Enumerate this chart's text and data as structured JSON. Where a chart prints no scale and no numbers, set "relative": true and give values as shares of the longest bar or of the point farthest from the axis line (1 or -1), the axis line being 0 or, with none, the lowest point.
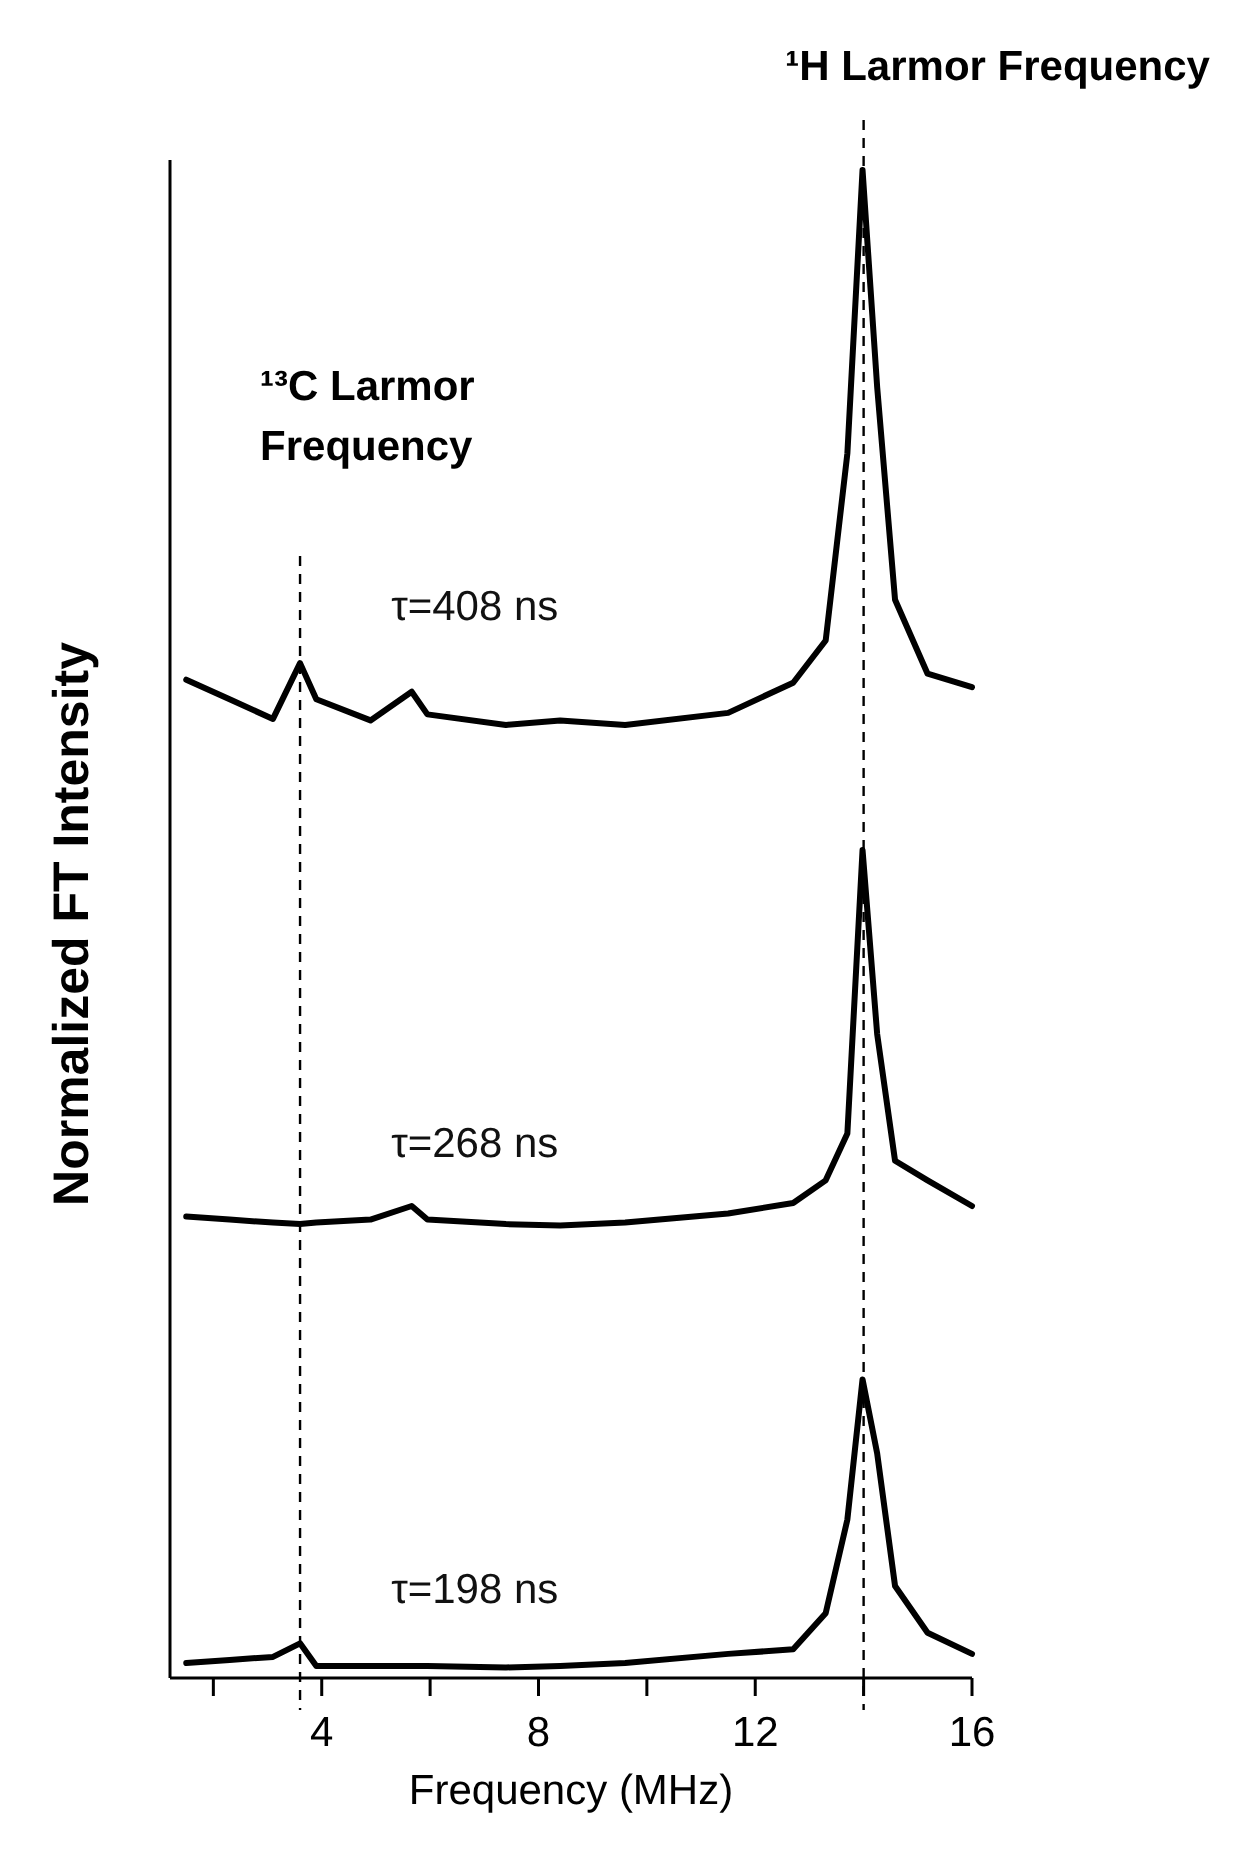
{
  "chart_data": {
    "type": "line",
    "relative": true,
    "xlabel": "Frequency (MHz)",
    "ylabel": "Normalized FT Intensity",
    "xlim": [
      1.2,
      16
    ],
    "xticks": [
      {
        "value": 2,
        "label": null
      },
      4,
      {
        "value": 6,
        "label": null
      },
      8,
      {
        "value": 10,
        "label": null
      },
      12,
      {
        "value": 14,
        "label": null
      },
      16
    ],
    "x": [
      1.5,
      2.3,
      3.1,
      3.6,
      3.9,
      4.9,
      5.66,
      5.95,
      7.4,
      8.4,
      9.6,
      11.5,
      12.7,
      13.3,
      13.7,
      13.98,
      14.25,
      14.58,
      15.18,
      16
    ],
    "series": [
      {
        "name": "τ=408 ns",
        "color": "#000000",
        "values": [
          0.662,
          0.649,
          0.636,
          0.673,
          0.649,
          0.635,
          0.654,
          0.639,
          0.632,
          0.635,
          0.632,
          0.64,
          0.66,
          0.688,
          0.812,
          1.0,
          0.856,
          0.715,
          0.666,
          0.657
        ]
      },
      {
        "name": "τ=268 ns",
        "color": "#000000",
        "values": [
          0.306,
          0.304,
          0.302,
          0.301,
          0.302,
          0.304,
          0.313,
          0.304,
          0.301,
          0.3,
          0.302,
          0.308,
          0.315,
          0.33,
          0.361,
          0.549,
          0.427,
          0.343,
          0.33,
          0.313
        ]
      },
      {
        "name": "τ=198 ns",
        "color": "#000000",
        "values": [
          0.01,
          0.012,
          0.014,
          0.023,
          0.008,
          0.008,
          0.008,
          0.008,
          0.007,
          0.008,
          0.01,
          0.016,
          0.019,
          0.043,
          0.105,
          0.198,
          0.149,
          0.061,
          0.03,
          0.016
        ]
      }
    ],
    "ref_lines": [
      {
        "axis": "x",
        "value": 3.6,
        "label": "¹³C Larmor Frequency",
        "line_style": "dashed"
      },
      {
        "axis": "x",
        "value": 14,
        "label": "¹H Larmor Frequency",
        "line_style": "dashed"
      }
    ]
  }
}
